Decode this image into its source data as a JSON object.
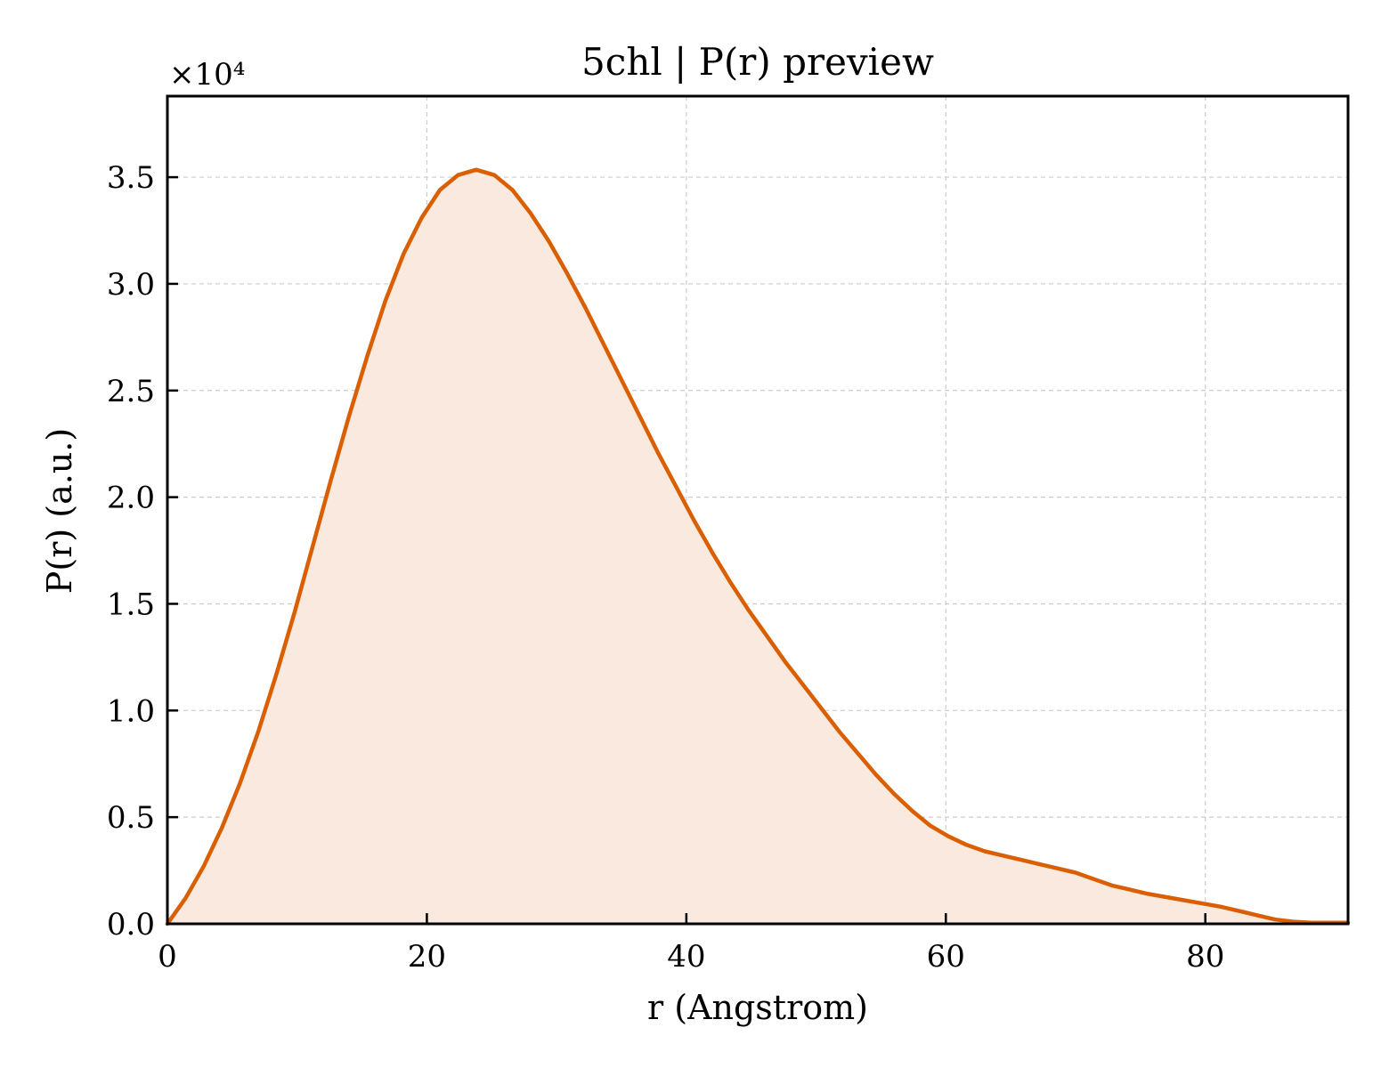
{
  "chart_data": {
    "type": "area",
    "title": "5chl | P(r) preview",
    "xlabel": "r (Angstrom)",
    "ylabel": "P(r) (a.u.)",
    "y_multiplier_label": "×10⁴",
    "xlim": [
      0,
      91
    ],
    "ylim": [
      0,
      3.88
    ],
    "y_scale_factor": 10000,
    "x_ticks": [
      0,
      20,
      40,
      60,
      80
    ],
    "x_tick_labels": [
      "0",
      "20",
      "40",
      "60",
      "80"
    ],
    "y_ticks": [
      0,
      0.5,
      1.0,
      1.5,
      2.0,
      2.5,
      3.0,
      3.5
    ],
    "y_tick_labels": [
      "0.0",
      "0.5",
      "1.0",
      "1.5",
      "2.0",
      "2.5",
      "3.0",
      "3.5"
    ],
    "grid": true,
    "legend": "none",
    "series": [
      {
        "x": [
          0,
          1.4,
          2.8,
          4.2,
          5.6,
          7.0,
          8.4,
          9.8,
          11.2,
          12.6,
          14.0,
          15.4,
          16.8,
          18.2,
          19.6,
          21.0,
          22.4,
          23.8,
          25.2,
          26.6,
          28.0,
          29.4,
          30.8,
          32.2,
          33.6,
          35.0,
          36.4,
          37.8,
          39.2,
          40.6,
          42.0,
          43.4,
          44.8,
          46.2,
          47.6,
          49.0,
          50.4,
          51.8,
          53.2,
          54.6,
          56.0,
          57.4,
          58.8,
          60.2,
          61.6,
          63.0,
          64.4,
          65.8,
          67.2,
          68.6,
          70.0,
          71.4,
          72.8,
          74.2,
          75.6,
          77.0,
          78.4,
          79.8,
          81.2,
          82.6,
          84.0,
          85.4,
          86.8,
          88.2,
          89.6,
          91.0
        ],
        "y": [
          0.0,
          0.12,
          0.27,
          0.45,
          0.66,
          0.9,
          1.17,
          1.46,
          1.77,
          2.08,
          2.38,
          2.66,
          2.92,
          3.14,
          3.31,
          3.44,
          3.51,
          3.535,
          3.51,
          3.44,
          3.33,
          3.2,
          3.05,
          2.89,
          2.72,
          2.55,
          2.38,
          2.21,
          2.05,
          1.89,
          1.74,
          1.6,
          1.47,
          1.35,
          1.23,
          1.12,
          1.01,
          0.9,
          0.8,
          0.7,
          0.61,
          0.53,
          0.46,
          0.41,
          0.37,
          0.34,
          0.32,
          0.3,
          0.28,
          0.26,
          0.24,
          0.21,
          0.18,
          0.16,
          0.14,
          0.125,
          0.11,
          0.095,
          0.08,
          0.06,
          0.04,
          0.02,
          0.01,
          0.005,
          0.005,
          0.005
        ]
      }
    ],
    "colors": {
      "line": "#d95f02",
      "fill": "#f9e9df",
      "grid": "#cccccc",
      "axes": "#000000"
    }
  }
}
